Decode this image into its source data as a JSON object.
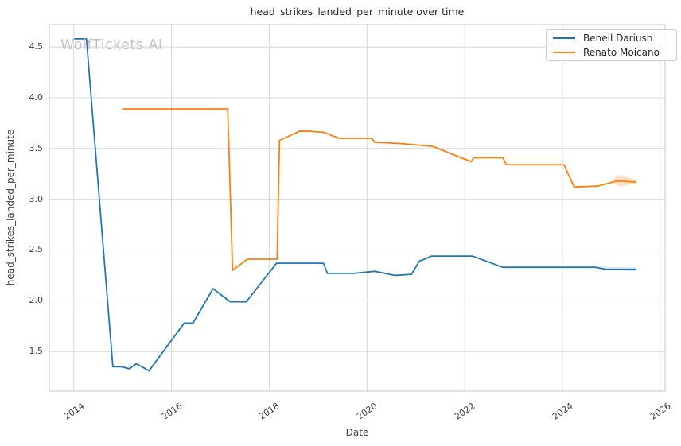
{
  "watermark": "WolfTickets.AI",
  "chart_data": {
    "type": "line",
    "title": "head_strikes_landed_per_minute over time",
    "xlabel": "Date",
    "ylabel": "head_strikes_landed_per_minute",
    "xlim": [
      2013.5,
      2026.1
    ],
    "ylim": [
      1.11,
      4.72
    ],
    "grid": true,
    "legend_position": "upper right",
    "grid_color": "#d8d8d8",
    "spine_color": "#c8c8c8",
    "x_tick_values": [
      2014,
      2016,
      2018,
      2020,
      2022,
      2024,
      2026
    ],
    "x_tick_labels": [
      "2014",
      "2016",
      "2018",
      "2020",
      "2022",
      "2024",
      "2026"
    ],
    "y_tick_values": [
      1.5,
      2.0,
      2.5,
      3.0,
      3.5,
      4.0,
      4.5
    ],
    "y_tick_labels": [
      "1.5",
      "2.0",
      "2.5",
      "3.0",
      "3.5",
      "4.0",
      "4.5"
    ],
    "series": [
      {
        "name": "Beneil Dariush",
        "color": "#1f77b4",
        "points": [
          [
            2014.02,
            4.58
          ],
          [
            2014.26,
            4.58
          ],
          [
            2014.8,
            1.35
          ],
          [
            2014.98,
            1.35
          ],
          [
            2015.14,
            1.33
          ],
          [
            2015.28,
            1.38
          ],
          [
            2015.54,
            1.31
          ],
          [
            2016.26,
            1.78
          ],
          [
            2016.44,
            1.78
          ],
          [
            2016.85,
            2.12
          ],
          [
            2017.2,
            1.99
          ],
          [
            2017.53,
            1.99
          ],
          [
            2018.15,
            2.37
          ],
          [
            2019.11,
            2.37
          ],
          [
            2019.19,
            2.27
          ],
          [
            2019.72,
            2.27
          ],
          [
            2020.16,
            2.29
          ],
          [
            2020.57,
            2.25
          ],
          [
            2020.91,
            2.26
          ],
          [
            2021.07,
            2.39
          ],
          [
            2021.32,
            2.44
          ],
          [
            2022.16,
            2.44
          ],
          [
            2022.78,
            2.33
          ],
          [
            2024.68,
            2.33
          ],
          [
            2024.9,
            2.31
          ],
          [
            2025.5,
            2.31
          ]
        ],
        "band": [
          [
            2024.7,
            2.34
          ],
          [
            2025.53,
            2.33
          ],
          [
            2025.53,
            2.29
          ],
          [
            2024.7,
            2.3
          ]
        ],
        "band_opacity": 0.12
      },
      {
        "name": "Renato Moicano",
        "color": "#ff7f0e",
        "points": [
          [
            2015.0,
            3.89
          ],
          [
            2017.15,
            3.89
          ],
          [
            2017.25,
            2.3
          ],
          [
            2017.55,
            2.41
          ],
          [
            2018.16,
            2.41
          ],
          [
            2018.21,
            3.58
          ],
          [
            2018.62,
            3.67
          ],
          [
            2018.83,
            3.67
          ],
          [
            2019.11,
            3.66
          ],
          [
            2019.43,
            3.6
          ],
          [
            2020.1,
            3.6
          ],
          [
            2020.16,
            3.56
          ],
          [
            2020.65,
            3.55
          ],
          [
            2021.14,
            3.53
          ],
          [
            2021.35,
            3.52
          ],
          [
            2022.13,
            3.37
          ],
          [
            2022.19,
            3.41
          ],
          [
            2022.78,
            3.41
          ],
          [
            2022.85,
            3.34
          ],
          [
            2024.03,
            3.34
          ],
          [
            2024.24,
            3.12
          ],
          [
            2024.73,
            3.13
          ],
          [
            2025.12,
            3.18
          ],
          [
            2025.5,
            3.17
          ]
        ],
        "band": [
          [
            2025.01,
            3.19
          ],
          [
            2025.14,
            3.24
          ],
          [
            2025.53,
            3.19
          ],
          [
            2025.53,
            3.15
          ],
          [
            2025.14,
            3.13
          ]
        ],
        "band_opacity": 0.25
      }
    ]
  }
}
